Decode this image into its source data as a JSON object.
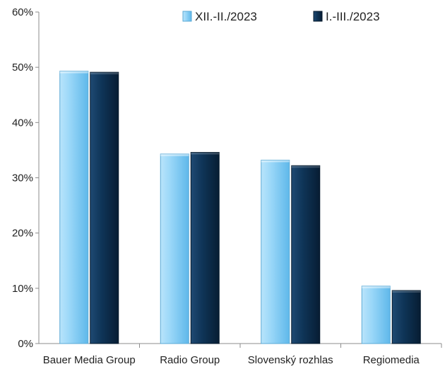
{
  "chart_data": {
    "type": "bar",
    "title": "",
    "xlabel": "",
    "ylabel": "",
    "categories": [
      "Bauer Media Group",
      "Radio Group",
      "Slovenský rozhlas",
      "Regiomedia"
    ],
    "series": [
      {
        "name": "XII.-II./2023",
        "values": [
          49.3,
          34.3,
          33.2,
          10.4
        ],
        "color": "#8fd0f7"
      },
      {
        "name": "I.-III./2023",
        "values": [
          49.1,
          34.6,
          32.2,
          9.6
        ],
        "color": "#0e3457"
      }
    ],
    "ylim": [
      0,
      60
    ],
    "yticks": [
      "0%",
      "10%",
      "20%",
      "30%",
      "40%",
      "50%",
      "60%"
    ],
    "grid": false,
    "legend_position": "top-right"
  }
}
